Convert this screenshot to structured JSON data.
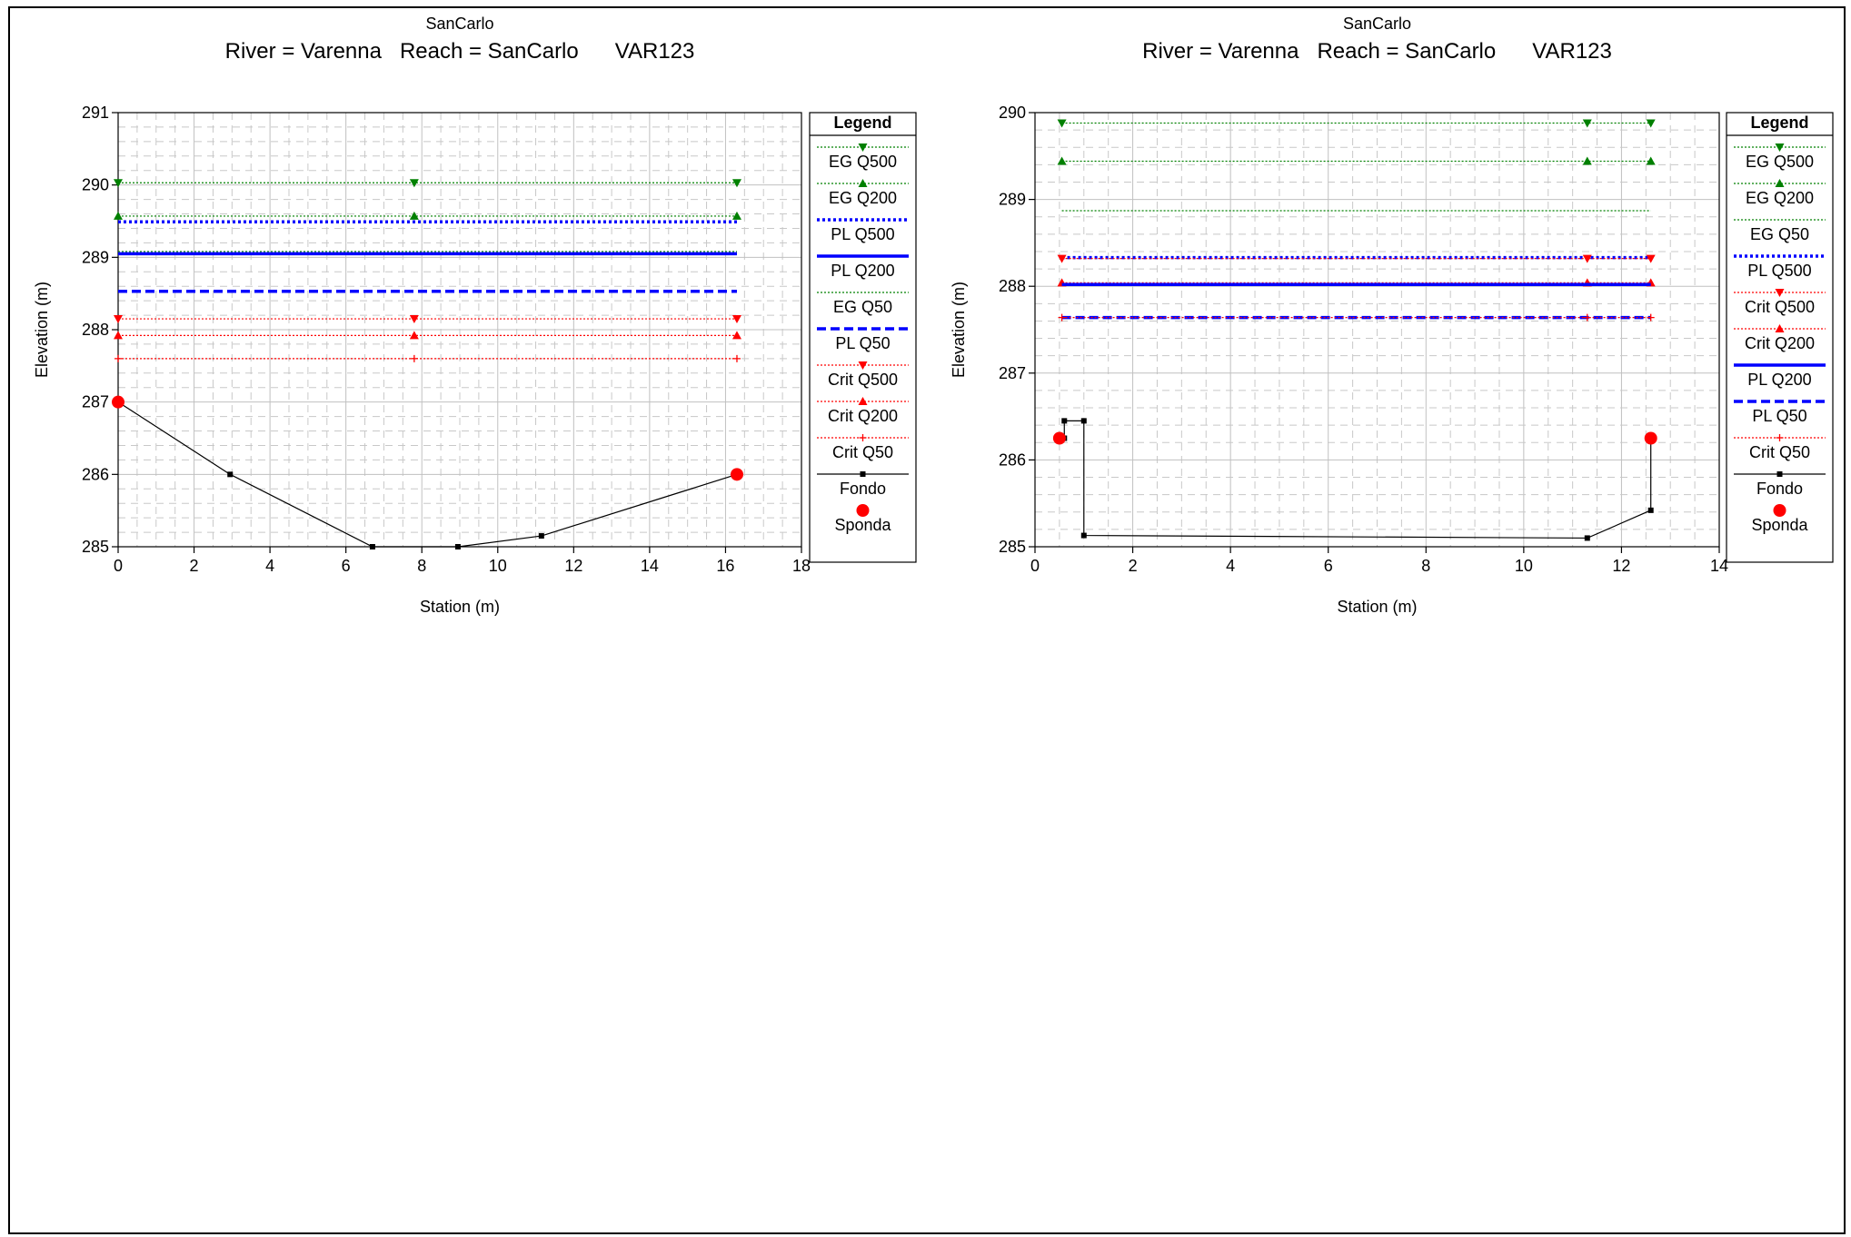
{
  "chart_data": [
    {
      "type": "line",
      "subtitle": "SanCarlo",
      "title": "River = Varenna   Reach = SanCarlo      VAR123",
      "xlabel": "Station (m)",
      "ylabel": "Elevation (m)",
      "xlim": [
        0,
        18
      ],
      "ylim": [
        285,
        291
      ],
      "xticks": [
        0,
        2,
        4,
        6,
        8,
        10,
        12,
        14,
        16,
        18
      ],
      "yticks": [
        285,
        286,
        287,
        288,
        289,
        290,
        291
      ],
      "grid": true,
      "legend_title": "Legend",
      "legend_placement": "right",
      "series": [
        {
          "name": "EG Q500",
          "color": "#008000",
          "style": "dotted",
          "marker": "tri-down",
          "x": [
            0,
            7.8,
            16.3
          ],
          "y": [
            290.03,
            290.03,
            290.03
          ]
        },
        {
          "name": "EG Q200",
          "color": "#008000",
          "style": "dotted",
          "marker": "tri-up",
          "x": [
            0,
            7.8,
            16.3
          ],
          "y": [
            289.57,
            289.57,
            289.57
          ]
        },
        {
          "name": "PL Q500",
          "color": "#0000ff",
          "style": "thick-dotted",
          "marker": "none",
          "x": [
            0,
            16.3
          ],
          "y": [
            289.49,
            289.49
          ]
        },
        {
          "name": "PL Q200",
          "color": "#0000ff",
          "style": "thick-solid",
          "marker": "none",
          "x": [
            0,
            16.3
          ],
          "y": [
            289.05,
            289.05
          ]
        },
        {
          "name": "EG Q50",
          "color": "#008000",
          "style": "dotted",
          "marker": "none",
          "x": [
            0,
            16.3
          ],
          "y": [
            289.08,
            289.08
          ]
        },
        {
          "name": "PL Q50",
          "color": "#0000ff",
          "style": "thick-dashed",
          "marker": "none",
          "x": [
            0,
            16.3
          ],
          "y": [
            288.53,
            288.53
          ]
        },
        {
          "name": "Crit Q500",
          "color": "#ff0000",
          "style": "dotted",
          "marker": "tri-down",
          "x": [
            0,
            7.8,
            16.3
          ],
          "y": [
            288.15,
            288.15,
            288.15
          ]
        },
        {
          "name": "Crit Q200",
          "color": "#ff0000",
          "style": "dotted",
          "marker": "tri-up",
          "x": [
            0,
            7.8,
            16.3
          ],
          "y": [
            287.92,
            287.92,
            287.92
          ]
        },
        {
          "name": "Crit Q50",
          "color": "#ff0000",
          "style": "dotted",
          "marker": "plus",
          "x": [
            0,
            7.8,
            16.3
          ],
          "y": [
            287.6,
            287.6,
            287.6
          ]
        },
        {
          "name": "Fondo",
          "color": "#000000",
          "style": "solid",
          "marker": "square",
          "x": [
            0,
            2.95,
            6.7,
            8.95,
            11.15,
            16.3
          ],
          "y": [
            287.0,
            286.0,
            285.0,
            285.0,
            285.15,
            286.0
          ]
        },
        {
          "name": "Sponda",
          "color": "#ff0000",
          "style": "none",
          "marker": "circle",
          "x": [
            0,
            16.3
          ],
          "y": [
            287.0,
            286.0
          ]
        }
      ]
    },
    {
      "type": "line",
      "subtitle": "SanCarlo",
      "title": "River = Varenna   Reach = SanCarlo      VAR123",
      "xlabel": "Station (m)",
      "ylabel": "Elevation (m)",
      "xlim": [
        0,
        14
      ],
      "ylim": [
        285,
        290
      ],
      "xticks": [
        0,
        2,
        4,
        6,
        8,
        10,
        12,
        14
      ],
      "yticks": [
        285,
        286,
        287,
        288,
        289,
        290
      ],
      "grid": true,
      "legend_title": "Legend",
      "legend_placement": "right",
      "series": [
        {
          "name": "EG Q500",
          "color": "#008000",
          "style": "dotted",
          "marker": "tri-down",
          "x": [
            0.55,
            11.3,
            12.6
          ],
          "y": [
            289.88,
            289.88,
            289.88
          ]
        },
        {
          "name": "EG Q200",
          "color": "#008000",
          "style": "dotted",
          "marker": "tri-up",
          "x": [
            0.55,
            11.3,
            12.6
          ],
          "y": [
            289.44,
            289.44,
            289.44
          ]
        },
        {
          "name": "EG Q50",
          "color": "#008000",
          "style": "dotted",
          "marker": "none",
          "x": [
            0.55,
            12.6
          ],
          "y": [
            288.87,
            288.87
          ]
        },
        {
          "name": "PL Q500",
          "color": "#0000ff",
          "style": "thick-dotted",
          "marker": "none",
          "x": [
            0.55,
            12.6
          ],
          "y": [
            288.33,
            288.33
          ]
        },
        {
          "name": "Crit Q500",
          "color": "#ff0000",
          "style": "dotted",
          "marker": "tri-down",
          "x": [
            0.55,
            11.3,
            12.6
          ],
          "y": [
            288.32,
            288.32,
            288.32
          ]
        },
        {
          "name": "Crit Q200",
          "color": "#ff0000",
          "style": "dotted",
          "marker": "tri-up",
          "x": [
            0.55,
            11.3,
            12.6
          ],
          "y": [
            288.04,
            288.04,
            288.04
          ]
        },
        {
          "name": "PL Q200",
          "color": "#0000ff",
          "style": "thick-solid",
          "marker": "none",
          "x": [
            0.55,
            12.6
          ],
          "y": [
            288.02,
            288.02
          ]
        },
        {
          "name": "PL Q50",
          "color": "#0000ff",
          "style": "thick-dashed",
          "marker": "none",
          "x": [
            0.55,
            12.6
          ],
          "y": [
            287.64,
            287.64
          ]
        },
        {
          "name": "Crit Q50",
          "color": "#ff0000",
          "style": "dotted",
          "marker": "plus",
          "x": [
            0.55,
            11.3,
            12.6
          ],
          "y": [
            287.64,
            287.64,
            287.64
          ]
        },
        {
          "name": "Fondo",
          "color": "#000000",
          "style": "solid",
          "marker": "square",
          "x": [
            0.5,
            0.6,
            0.6,
            1.0,
            1.0,
            11.3,
            12.6,
            12.6
          ],
          "y": [
            286.25,
            286.25,
            286.45,
            286.45,
            285.13,
            285.1,
            285.42,
            286.25
          ]
        },
        {
          "name": "Sponda",
          "color": "#ff0000",
          "style": "none",
          "marker": "circle",
          "x": [
            0.5,
            12.6
          ],
          "y": [
            286.25,
            286.25
          ]
        }
      ]
    }
  ]
}
